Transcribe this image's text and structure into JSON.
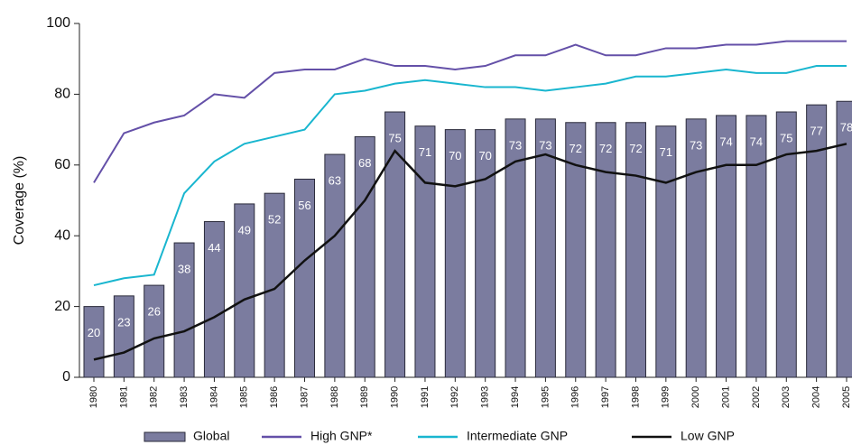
{
  "chart_data": {
    "type": "bar",
    "y_label": "Coverage (%)",
    "categories": [
      "1980",
      "1981",
      "1982",
      "1983",
      "1984",
      "1985",
      "1986",
      "1987",
      "1988",
      "1989",
      "1990",
      "1991",
      "1992",
      "1993",
      "1994",
      "1995",
      "1996",
      "1997",
      "1998",
      "1999",
      "2000",
      "2001",
      "2002",
      "2003",
      "2004",
      "2005"
    ],
    "ylim": [
      0,
      100
    ],
    "yticks": [
      0,
      20,
      40,
      60,
      80,
      100
    ],
    "grid": false,
    "series": [
      {
        "name": "Global",
        "type": "bar",
        "color": "#7b7c9f",
        "values": [
          20,
          23,
          26,
          38,
          44,
          49,
          52,
          56,
          63,
          68,
          75,
          71,
          70,
          70,
          73,
          73,
          72,
          72,
          72,
          71,
          73,
          74,
          74,
          75,
          77,
          78
        ]
      },
      {
        "name": "High GNP*",
        "type": "line",
        "color": "#6450a8",
        "values": [
          55,
          69,
          72,
          74,
          80,
          79,
          86,
          87,
          87,
          90,
          88,
          88,
          87,
          88,
          91,
          91,
          94,
          91,
          91,
          93,
          93,
          94,
          94,
          95,
          95,
          95
        ]
      },
      {
        "name": "Intermediate GNP",
        "type": "line",
        "color": "#19b6cf",
        "values": [
          26,
          28,
          29,
          52,
          61,
          66,
          68,
          70,
          80,
          81,
          83,
          84,
          83,
          82,
          82,
          81,
          82,
          83,
          85,
          85,
          86,
          87,
          86,
          86,
          88,
          88
        ]
      },
      {
        "name": "Low GNP",
        "type": "line",
        "color": "#111111",
        "values": [
          5,
          7,
          11,
          13,
          17,
          22,
          25,
          33,
          40,
          50,
          64,
          55,
          54,
          56,
          61,
          63,
          60,
          58,
          57,
          55,
          58,
          60,
          60,
          63,
          64,
          66
        ]
      }
    ]
  }
}
